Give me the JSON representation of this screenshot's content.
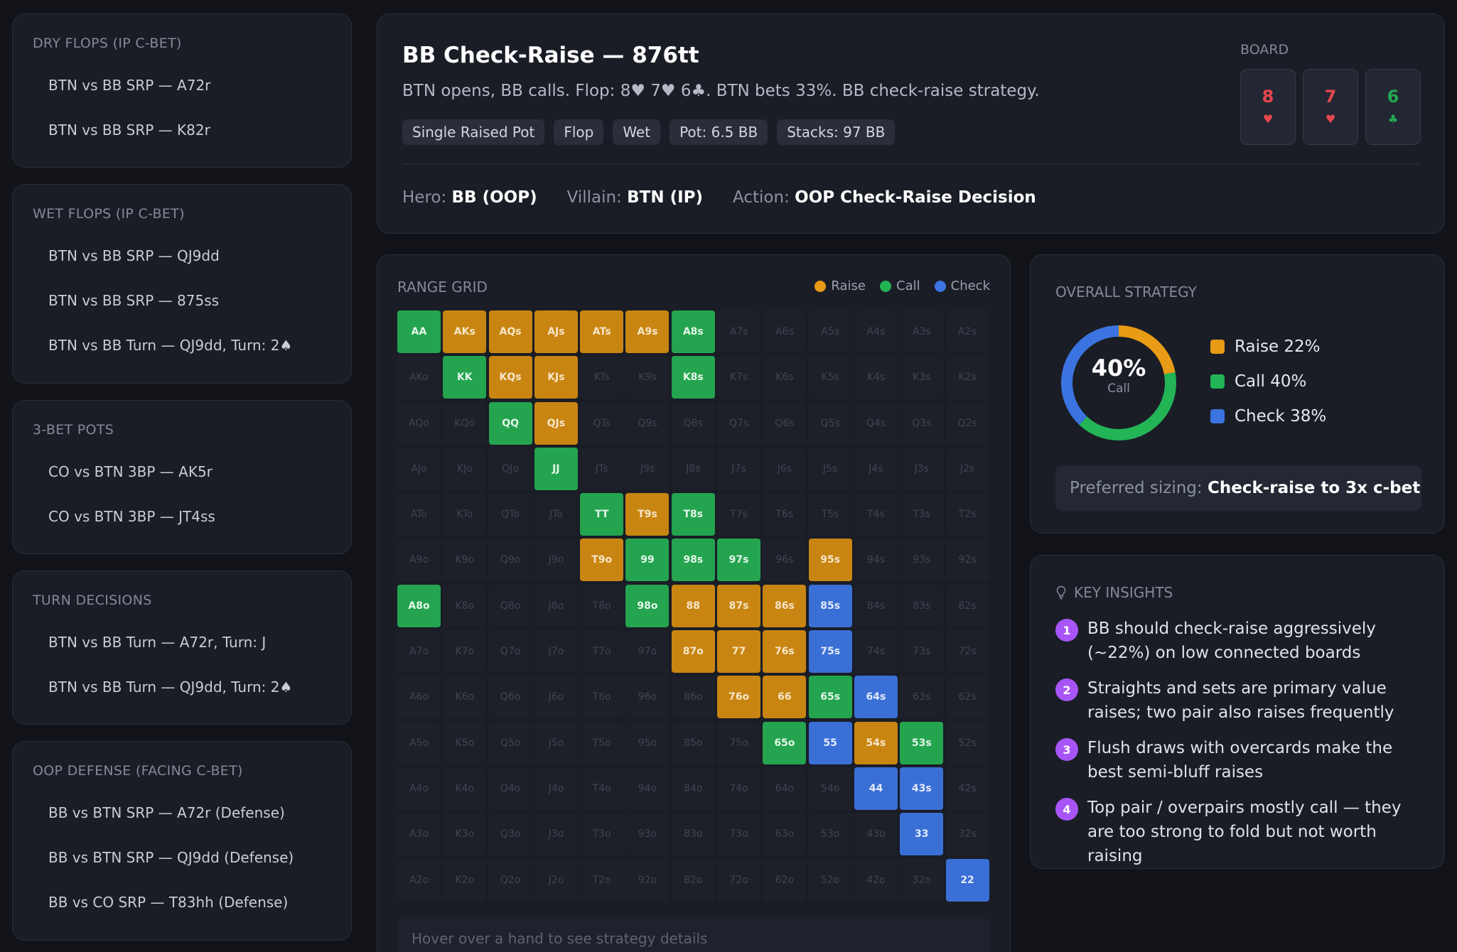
{
  "sidebar": {
    "groups": [
      {
        "title": "DRY FLOPS (IP C-BET)",
        "items": [
          "BTN vs BB SRP — A72r",
          "BTN vs BB SRP — K82r"
        ]
      },
      {
        "title": "WET FLOPS (IP C-BET)",
        "items": [
          "BTN vs BB SRP — QJ9dd",
          "BTN vs BB SRP — 875ss",
          "BTN vs BB Turn — QJ9dd, Turn: 2♠"
        ]
      },
      {
        "title": "3-BET POTS",
        "items": [
          "CO vs BTN 3BP — AK5r",
          "CO vs BTN 3BP — JT4ss"
        ]
      },
      {
        "title": "TURN DECISIONS",
        "items": [
          "BTN vs BB Turn — A72r, Turn: J",
          "BTN vs BB Turn — QJ9dd, Turn: 2♠"
        ]
      },
      {
        "title": "OOP DEFENSE (FACING C-BET)",
        "items": [
          "BB vs BTN SRP — A72r (Defense)",
          "BB vs BTN SRP — QJ9dd (Defense)",
          "BB vs CO SRP — T83hh (Defense)"
        ]
      }
    ]
  },
  "header": {
    "title": "BB Check-Raise — 876tt",
    "subtitle": "BTN opens, BB calls. Flop: 8♥ 7♥ 6♣. BTN bets 33%. BB check-raise strategy.",
    "tags": [
      "Single Raised Pot",
      "Flop",
      "Wet",
      "Pot: 6.5 BB",
      "Stacks: 97 BB"
    ],
    "hero_label": "Hero:",
    "hero_value": "BB (OOP)",
    "villain_label": "Villain:",
    "villain_value": "BTN (IP)",
    "action_label": "Action:",
    "action_value": "OOP Check-Raise Decision",
    "board_label": "BOARD",
    "board": [
      {
        "rank": "8",
        "suit": "♥",
        "color": "#e5484d"
      },
      {
        "rank": "7",
        "suit": "♥",
        "color": "#e5484d"
      },
      {
        "rank": "6",
        "suit": "♣",
        "color": "#22a851"
      }
    ]
  },
  "range": {
    "title": "RANGE GRID",
    "legend": {
      "raise": "Raise",
      "call": "Call",
      "check": "Check"
    },
    "colors": {
      "raise": "#c98512",
      "call": "#24a44f",
      "check": "#3a6fd6"
    },
    "ranks": [
      "A",
      "K",
      "Q",
      "J",
      "T",
      "9",
      "8",
      "7",
      "6",
      "5",
      "4",
      "3",
      "2"
    ],
    "actions": {
      "AA": "call",
      "AKs": "raise",
      "AQs": "raise",
      "AJs": "raise",
      "ATs": "raise",
      "A9s": "raise",
      "A8s": "call",
      "KK": "call",
      "KQs": "raise",
      "KJs": "raise",
      "K8s": "call",
      "QQ": "call",
      "QJs": "raise",
      "JJ": "call",
      "TT": "call",
      "T9s": "raise",
      "T8s": "call",
      "T9o": "raise",
      "99": "call",
      "98s": "call",
      "97s": "call",
      "95s": "raise",
      "A8o": "call",
      "98o": "call",
      "88": "raise",
      "87s": "raise",
      "86s": "raise",
      "85s": "check",
      "87o": "raise",
      "77": "raise",
      "76s": "raise",
      "75s": "check",
      "76o": "raise",
      "66": "raise",
      "65s": "call",
      "64s": "check",
      "65o": "call",
      "55": "check",
      "54s": "raise",
      "53s": "call",
      "44": "check",
      "43s": "check",
      "33": "check",
      "22": "check"
    },
    "hover_hint": "Hover over a hand to see strategy details"
  },
  "strategy": {
    "title": "OVERALL STRATEGY",
    "center_value": "40%",
    "center_label": "Call",
    "breakdown": [
      {
        "label": "Raise 22%",
        "percent": 22,
        "color": "#e89b14"
      },
      {
        "label": "Call 40%",
        "percent": 40,
        "color": "#22b455"
      },
      {
        "label": "Check 38%",
        "percent": 38,
        "color": "#3b74e0"
      }
    ],
    "sizing_label": "Preferred sizing:",
    "sizing_value": "Check-raise to 3x c-bet"
  },
  "insights": {
    "title": "KEY INSIGHTS",
    "items": [
      {
        "num": "1",
        "text": "BB should check-raise aggressively (~22%) on low connected boards"
      },
      {
        "num": "2",
        "text": "Straights and sets are primary value raises; two pair also raises frequently"
      },
      {
        "num": "3",
        "text": "Flush draws with overcards make the best semi-bluff raises"
      },
      {
        "num": "4",
        "text": "Top pair / overpairs mostly call — they are too strong to fold but not worth raising"
      }
    ]
  }
}
